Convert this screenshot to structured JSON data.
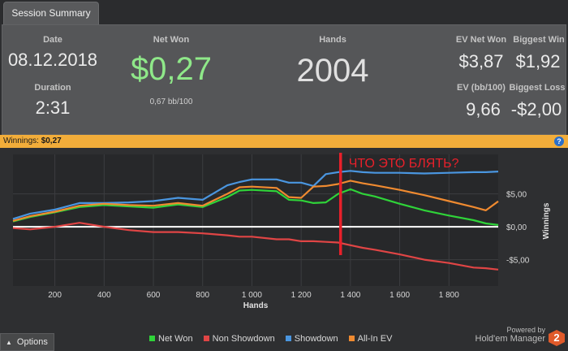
{
  "tab": {
    "label": "Session Summary"
  },
  "summary": {
    "date_label": "Date",
    "date": "08.12.2018",
    "duration_label": "Duration",
    "duration": "2:31",
    "netwon_label": "Net Won",
    "netwon": "$0,27",
    "netwon_sub": "0,67 bb/100",
    "hands_label": "Hands",
    "hands": "2004",
    "evnet_label": "EV Net Won",
    "evnet": "$3,87",
    "bigwin_label": "Biggest Win",
    "bigwin": "$1,92",
    "evbb_label": "EV (bb/100)",
    "evbb": "9,66",
    "bigloss_label": "Biggest Loss",
    "bigloss": "-$2,00"
  },
  "winnings_bar": {
    "label": "Winnings:",
    "value": "$0,27",
    "help": "?"
  },
  "annotation": {
    "text": "ЧТО ЭТО БЛЯТЬ?",
    "color": "#e8202a",
    "x_hand": 1360
  },
  "chart_data": {
    "type": "line",
    "title": "",
    "xlabel": "Hands",
    "ylabel": "Winnings",
    "xlim": [
      30,
      2000
    ],
    "ylim": [
      -9,
      11
    ],
    "xticks": [
      200,
      400,
      600,
      800,
      1000,
      1200,
      1400,
      1600,
      1800
    ],
    "xtick_labels": [
      "200",
      "400",
      "600",
      "800",
      "1 000",
      "1 200",
      "1 400",
      "1 600",
      "1 800"
    ],
    "yticks": [
      -5,
      0,
      5
    ],
    "ytick_labels": [
      "-$5,00",
      "$0,00",
      "$5,00"
    ],
    "grid": true,
    "legend_position": "bottom",
    "zero_line": true,
    "x": [
      30,
      100,
      200,
      300,
      400,
      500,
      600,
      700,
      800,
      900,
      950,
      1000,
      1100,
      1150,
      1200,
      1250,
      1300,
      1350,
      1400,
      1450,
      1500,
      1600,
      1700,
      1800,
      1900,
      1950,
      2000
    ],
    "series": [
      {
        "name": "Net Won",
        "color": "#2fd339",
        "values": [
          0.8,
          1.5,
          2.2,
          3.0,
          3.3,
          3.1,
          2.9,
          3.4,
          3.0,
          4.5,
          5.5,
          5.6,
          5.4,
          4.1,
          4.0,
          3.6,
          3.7,
          5.0,
          5.7,
          5.0,
          4.6,
          3.5,
          2.5,
          1.7,
          1.0,
          0.5,
          0.27
        ]
      },
      {
        "name": "Non Showdown",
        "color": "#e04545",
        "values": [
          -0.2,
          -0.4,
          0.0,
          0.6,
          0.0,
          -0.5,
          -0.8,
          -0.8,
          -1.0,
          -1.3,
          -1.5,
          -1.5,
          -1.9,
          -1.9,
          -2.2,
          -2.2,
          -2.3,
          -2.4,
          -2.8,
          -3.2,
          -3.5,
          -4.2,
          -5.0,
          -5.5,
          -6.2,
          -6.3,
          -6.5
        ]
      },
      {
        "name": "Showdown",
        "color": "#4a96e0",
        "values": [
          1.2,
          2.0,
          2.6,
          3.6,
          3.6,
          3.7,
          3.9,
          4.4,
          4.1,
          6.3,
          6.8,
          7.2,
          7.2,
          6.7,
          6.7,
          6.2,
          8.0,
          8.3,
          8.5,
          8.3,
          8.2,
          8.2,
          8.1,
          8.2,
          8.3,
          8.3,
          8.4
        ]
      },
      {
        "name": "All-In EV",
        "color": "#ef8a30",
        "values": [
          0.9,
          1.6,
          2.3,
          3.2,
          3.5,
          3.3,
          3.2,
          3.6,
          3.2,
          5.0,
          6.0,
          6.1,
          5.9,
          4.5,
          4.4,
          6.1,
          6.2,
          6.5,
          7.0,
          6.6,
          6.3,
          5.6,
          4.8,
          3.9,
          3.0,
          2.5,
          3.87
        ]
      }
    ]
  },
  "options_button": {
    "label": "Options"
  },
  "branding": {
    "line1": "Powered by",
    "line2": "Hold'em Manager",
    "badge": "2"
  }
}
